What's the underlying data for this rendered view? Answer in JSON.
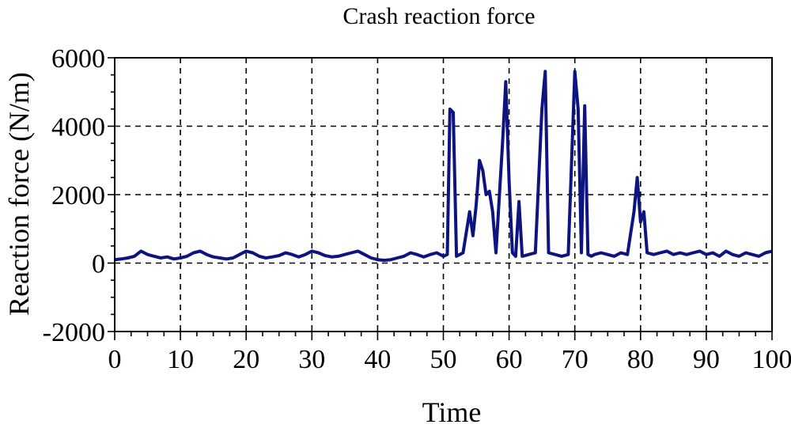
{
  "chart_data": {
    "type": "line",
    "title": "Crash reaction force",
    "xlabel": "Time",
    "ylabel": "Reaction force (N/m)",
    "xlim": [
      0,
      100
    ],
    "ylim": [
      -2000,
      6000
    ],
    "xticks": [
      0,
      10,
      20,
      30,
      40,
      50,
      60,
      70,
      80,
      90,
      100
    ],
    "yticks": [
      -2000,
      0,
      2000,
      4000,
      6000
    ],
    "grid": true,
    "line_color": "#0d1480",
    "series": [
      {
        "x": [
          0,
          1,
          2,
          3,
          4,
          5,
          6,
          7,
          8,
          9,
          10,
          11,
          12,
          13,
          14,
          15,
          16,
          17,
          18,
          19,
          20,
          21,
          22,
          23,
          24,
          25,
          26,
          27,
          28,
          29,
          30,
          31,
          32,
          33,
          34,
          35,
          36,
          37,
          38,
          39,
          40,
          41,
          42,
          43,
          44,
          45,
          46,
          47,
          48,
          49,
          50,
          50.6,
          51,
          51.5,
          52,
          53,
          54,
          54.5,
          55,
          55.5,
          56,
          56.5,
          57,
          57.5,
          58,
          59,
          59.5,
          60,
          60.5,
          61,
          61.5,
          62,
          63,
          64,
          65,
          65.5,
          66,
          67,
          68,
          69,
          70,
          70.5,
          71,
          71.5,
          72,
          72.5,
          73,
          74,
          75,
          76,
          77,
          78,
          79,
          79.5,
          80,
          80.5,
          81,
          82,
          83,
          84,
          85,
          86,
          87,
          88,
          89,
          90,
          91,
          92,
          93,
          94,
          95,
          96,
          97,
          98,
          99,
          100
        ],
        "y": [
          100,
          120,
          150,
          200,
          350,
          250,
          200,
          150,
          180,
          120,
          150,
          200,
          300,
          350,
          250,
          180,
          150,
          120,
          150,
          250,
          350,
          300,
          200,
          150,
          180,
          220,
          300,
          250,
          180,
          250,
          350,
          300,
          220,
          180,
          200,
          250,
          300,
          350,
          250,
          150,
          100,
          80,
          100,
          150,
          200,
          300,
          250,
          180,
          250,
          300,
          200,
          250,
          4500,
          4400,
          200,
          300,
          1500,
          800,
          1700,
          3000,
          2700,
          2000,
          2100,
          1500,
          300,
          3500,
          5300,
          2400,
          300,
          200,
          1800,
          200,
          250,
          300,
          4500,
          5600,
          300,
          250,
          200,
          250,
          5600,
          4500,
          300,
          4600,
          250,
          200,
          250,
          300,
          250,
          200,
          300,
          250,
          1500,
          2500,
          1200,
          1500,
          300,
          250,
          300,
          350,
          250,
          300,
          250,
          300,
          350,
          250,
          300,
          200,
          350,
          250,
          200,
          300,
          250,
          200,
          300,
          350
        ]
      }
    ]
  }
}
